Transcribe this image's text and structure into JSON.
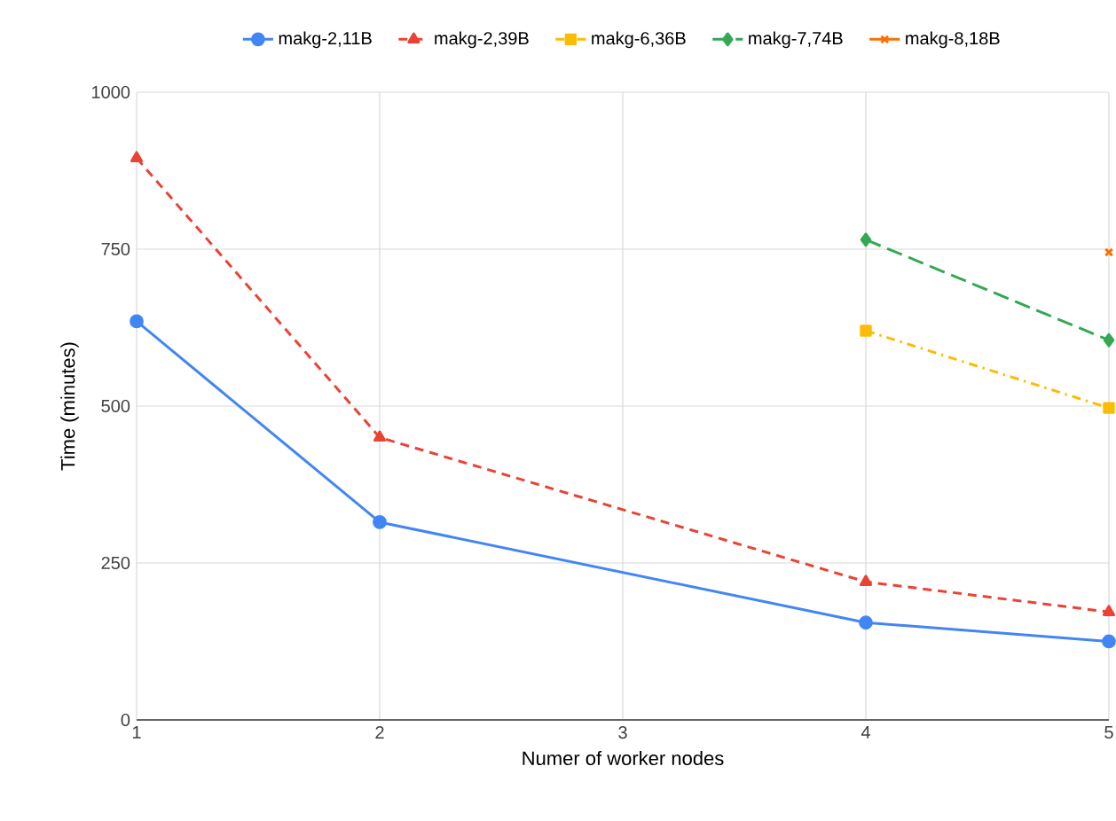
{
  "chart_data": {
    "type": "line",
    "xlabel": "Numer of worker nodes",
    "ylabel": "Time (minutes)",
    "xlim": [
      1,
      5
    ],
    "xticks": [
      1,
      2,
      3,
      4,
      5
    ],
    "ylim": [
      0,
      1000
    ],
    "yticks": [
      0,
      250,
      500,
      750,
      1000
    ],
    "grid": true,
    "legend": "top",
    "series": [
      {
        "name": "makg-2,11B",
        "color": "#4285f4",
        "marker": "circle",
        "line_style": "solid",
        "x": [
          1,
          2,
          4,
          5
        ],
        "values": [
          635,
          315,
          155,
          125
        ]
      },
      {
        "name": "makg-2,39B",
        "color": "#ea4335",
        "marker": "triangle",
        "line_style": "dashed",
        "x": [
          1,
          2,
          4,
          5
        ],
        "values": [
          895,
          450,
          220,
          172
        ]
      },
      {
        "name": "makg-6,36B",
        "color": "#fbbc04",
        "marker": "square",
        "line_style": "dashdot",
        "x": [
          4,
          5
        ],
        "values": [
          620,
          497
        ]
      },
      {
        "name": "makg-7,74B",
        "color": "#34a853",
        "marker": "diamond",
        "line_style": "longdashed",
        "x": [
          4,
          5
        ],
        "values": [
          765,
          605
        ]
      },
      {
        "name": "makg-8,18B",
        "color": "#ff6d01",
        "marker": "cross",
        "line_style": "none",
        "x": [
          5
        ],
        "values": [
          745
        ]
      }
    ]
  }
}
